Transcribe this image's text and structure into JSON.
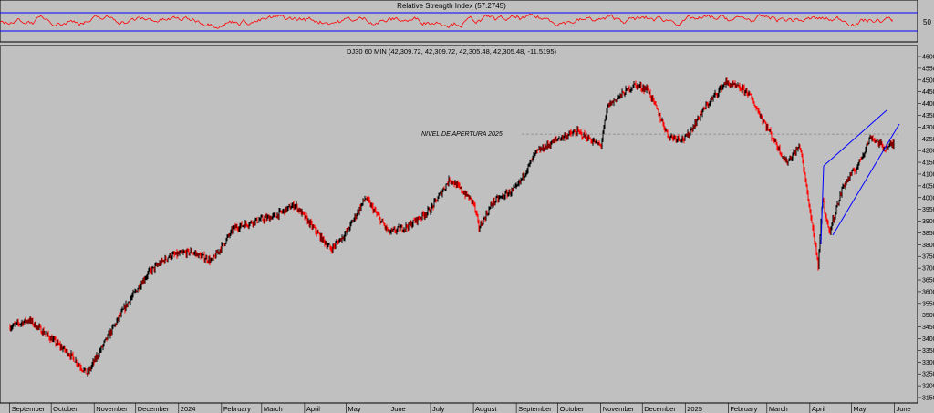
{
  "rsi_panel": {
    "title": "Relative Strength Index (57.2745)",
    "level_label": "50",
    "line_color": "#ff0000",
    "band_color": "#0000ff"
  },
  "price_panel": {
    "header": "DJ30 60 MIN (42,309.72, 42,309.72, 42,305.48, 42,305.48, -11.5195)",
    "annotation": "NIVEL DE APERTURA 2025",
    "candle_up_color": "#000000",
    "candle_down_color": "#ff0000",
    "trendline_color": "#0000ff",
    "level_line_color": "#888888"
  },
  "chart_data": [
    {
      "type": "line",
      "title": "Relative Strength Index (57.2745)",
      "series": [
        {
          "name": "Relative Strength Index",
          "color": "#ff0000"
        }
      ],
      "y_ticks": [
        "50"
      ],
      "bands": [
        70,
        30
      ],
      "ylim": [
        0,
        100
      ],
      "last_value": 57.2745
    },
    {
      "type": "line",
      "title": "DJ30 60 MIN (42,309.72, 42,309.72, 42,305.48, 42,305.48, -11.5195)",
      "x_ticks": [
        "September",
        "October",
        "November",
        "December",
        "2024",
        "February",
        "March",
        "April",
        "May",
        "June",
        "July",
        "August",
        "September",
        "October",
        "November",
        "December",
        "2025",
        "February",
        "March",
        "April",
        "May",
        "June"
      ],
      "y_ticks": [
        "46000",
        "45500",
        "45000",
        "44500",
        "44000",
        "43500",
        "43000",
        "42500",
        "42000",
        "41500",
        "41000",
        "40500",
        "40000",
        "39500",
        "39000",
        "38500",
        "38000",
        "37500",
        "37000",
        "36500",
        "36000",
        "35500",
        "35000",
        "34500",
        "34000",
        "33500",
        "33000",
        "32500",
        "32000",
        "31500"
      ],
      "ylim": [
        31500,
        46000
      ],
      "opening_level_2025": 42700,
      "annotation": "NIVEL DE APERTURA 2025",
      "x": [
        "2023-09-01",
        "2023-09-15",
        "2023-10-01",
        "2023-10-15",
        "2023-10-27",
        "2023-11-10",
        "2023-11-25",
        "2023-12-10",
        "2023-12-25",
        "2024-01-10",
        "2024-01-25",
        "2024-02-10",
        "2024-02-25",
        "2024-03-10",
        "2024-03-25",
        "2024-04-10",
        "2024-04-20",
        "2024-05-01",
        "2024-05-15",
        "2024-06-01",
        "2024-06-15",
        "2024-07-01",
        "2024-07-15",
        "2024-08-01",
        "2024-08-05",
        "2024-08-15",
        "2024-09-01",
        "2024-09-15",
        "2024-10-01",
        "2024-10-15",
        "2024-11-01",
        "2024-11-06",
        "2024-11-25",
        "2024-12-05",
        "2024-12-20",
        "2025-01-01",
        "2025-01-15",
        "2025-01-30",
        "2025-02-15",
        "2025-03-01",
        "2025-03-15",
        "2025-03-25",
        "2025-04-04",
        "2025-04-07",
        "2025-04-10",
        "2025-04-15",
        "2025-04-25",
        "2025-05-05",
        "2025-05-15",
        "2025-05-25",
        "2025-06-01"
      ],
      "y": [
        34500,
        34800,
        34000,
        33300,
        32500,
        34000,
        35500,
        36800,
        37500,
        37700,
        37300,
        38700,
        39000,
        39200,
        39700,
        38500,
        37800,
        38500,
        40000,
        38500,
        38800,
        39500,
        40800,
        39800,
        38700,
        39800,
        40400,
        41900,
        42500,
        42800,
        42200,
        43900,
        44800,
        44600,
        42600,
        42500,
        43800,
        44900,
        44500,
        43000,
        41500,
        42200,
        38300,
        37000,
        40000,
        38500,
        40500,
        41300,
        42600,
        42100,
        42300
      ]
    }
  ]
}
